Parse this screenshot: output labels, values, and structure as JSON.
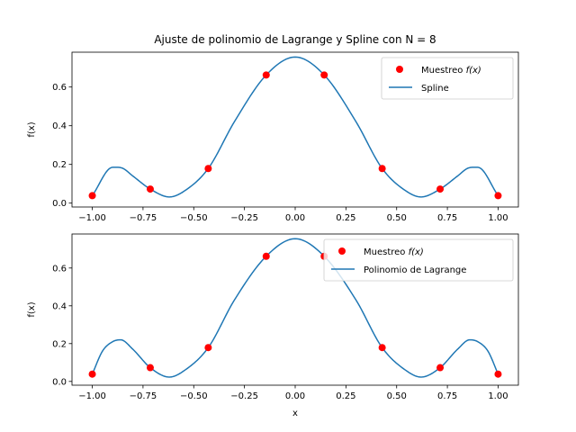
{
  "figure": {
    "title": "Ajuste de polinomio de Lagrange y Spline con N = 8"
  },
  "chart_data": [
    {
      "type": "line",
      "title": "Ajuste de polinomio de Lagrange y Spline con N = 8",
      "xlabel": "",
      "ylabel": "f(x)",
      "xlim": [
        -1.1,
        1.1
      ],
      "ylim": [
        -0.02,
        0.78
      ],
      "xticks": [
        -1.0,
        -0.75,
        -0.5,
        -0.25,
        0.0,
        0.25,
        0.5,
        0.75,
        1.0
      ],
      "xtick_labels": [
        "−1.00",
        "−0.75",
        "−0.50",
        "−0.25",
        "0.00",
        "0.25",
        "0.50",
        "0.75",
        "1.00"
      ],
      "yticks": [
        0.0,
        0.2,
        0.4,
        0.6
      ],
      "ytick_labels": [
        "0.0",
        "0.2",
        "0.4",
        "0.6"
      ],
      "legend_position": "top-right",
      "samples": {
        "name": "Muestreo",
        "name_math": "f(x)",
        "color": "#ff0000",
        "x": [
          -1.0,
          -0.7143,
          -0.4286,
          -0.1429,
          0.1429,
          0.4286,
          0.7143,
          1.0
        ],
        "y": [
          0.0385,
          0.0727,
          0.1789,
          0.6622,
          0.6622,
          0.1789,
          0.0727,
          0.0385
        ]
      },
      "series": [
        {
          "name": "Spline",
          "color": "#1f77b4",
          "x": [
            -1.0,
            -0.9,
            -0.85,
            -0.8,
            -0.7143,
            -0.62,
            -0.55,
            -0.4286,
            -0.3,
            -0.1429,
            0.0,
            0.1429,
            0.3,
            0.4286,
            0.55,
            0.62,
            0.7143,
            0.8,
            0.85,
            0.9,
            1.0
          ],
          "y": [
            0.0385,
            0.185,
            0.18,
            0.14,
            0.0727,
            0.032,
            0.06,
            0.1789,
            0.42,
            0.6622,
            0.755,
            0.6622,
            0.42,
            0.1789,
            0.06,
            0.032,
            0.0727,
            0.14,
            0.18,
            0.185,
            0.0385
          ]
        }
      ]
    },
    {
      "type": "line",
      "title": "",
      "xlabel": "x",
      "ylabel": "f(x)",
      "xlim": [
        -1.1,
        1.1
      ],
      "ylim": [
        -0.02,
        0.78
      ],
      "xticks": [
        -1.0,
        -0.75,
        -0.5,
        -0.25,
        0.0,
        0.25,
        0.5,
        0.75,
        1.0
      ],
      "xtick_labels": [
        "−1.00",
        "−0.75",
        "−0.50",
        "−0.25",
        "0.00",
        "0.25",
        "0.50",
        "0.75",
        "1.00"
      ],
      "yticks": [
        0.0,
        0.2,
        0.4,
        0.6
      ],
      "ytick_labels": [
        "0.0",
        "0.2",
        "0.4",
        "0.6"
      ],
      "legend_position": "top-right",
      "samples": {
        "name": "Muestreo",
        "name_math": "f(x)",
        "color": "#ff0000",
        "x": [
          -1.0,
          -0.7143,
          -0.4286,
          -0.1429,
          0.1429,
          0.4286,
          0.7143,
          1.0
        ],
        "y": [
          0.0385,
          0.0727,
          0.1789,
          0.6622,
          0.6622,
          0.1789,
          0.0727,
          0.0385
        ]
      },
      "series": [
        {
          "name": "Polinomio de Lagrange",
          "color": "#1f77b4",
          "x": [
            -1.0,
            -0.95,
            -0.9,
            -0.86,
            -0.8,
            -0.7143,
            -0.62,
            -0.55,
            -0.4286,
            -0.3,
            -0.1429,
            0.0,
            0.1429,
            0.3,
            0.4286,
            0.55,
            0.62,
            0.7143,
            0.8,
            0.86,
            0.9,
            0.95,
            1.0
          ],
          "y": [
            0.0385,
            0.16,
            0.21,
            0.22,
            0.17,
            0.0727,
            0.023,
            0.055,
            0.1789,
            0.43,
            0.6622,
            0.755,
            0.6622,
            0.43,
            0.1789,
            0.055,
            0.023,
            0.0727,
            0.17,
            0.22,
            0.21,
            0.16,
            0.0385
          ]
        }
      ]
    }
  ]
}
